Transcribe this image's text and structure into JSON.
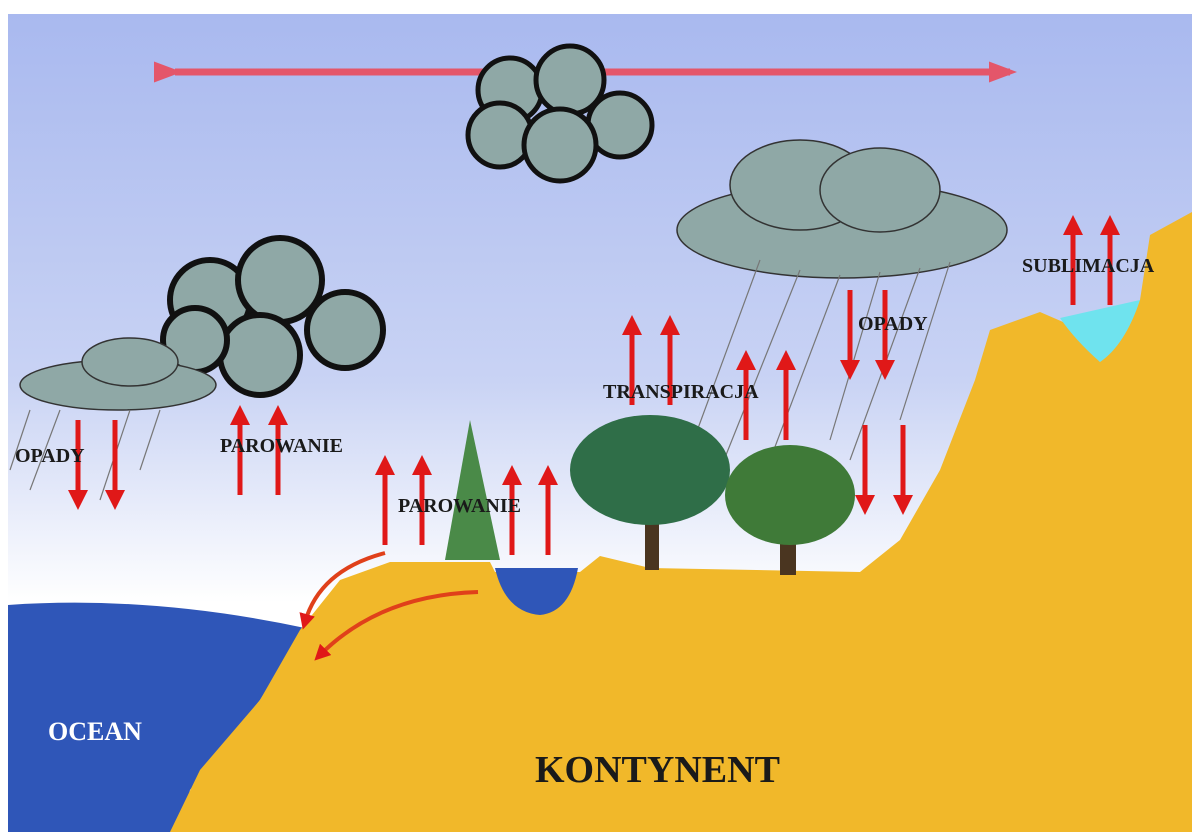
{
  "labels": [
    "OPADY",
    "PAROWANIE",
    "PAROWANIE",
    "TRANSPIRACJA",
    "OPADY",
    "SUBLIMACJA",
    "OCEAN",
    "KONTYNENT"
  ]
}
